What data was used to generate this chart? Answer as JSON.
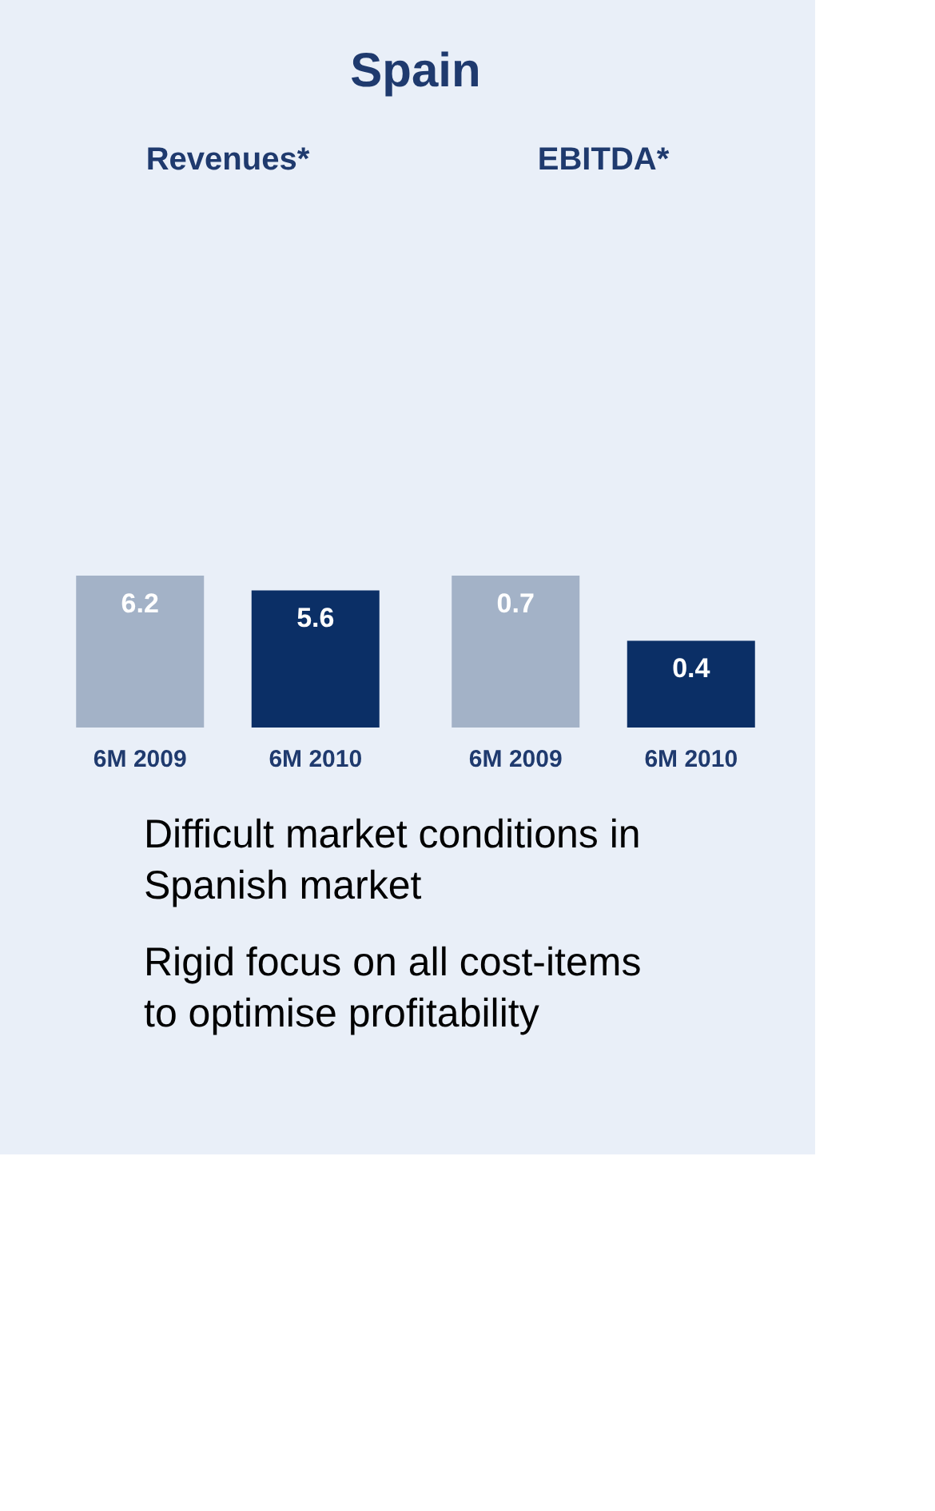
{
  "chart_data": [
    {
      "type": "bar",
      "title": "Revenues*",
      "categories": [
        "6M 2009",
        "6M 2010"
      ],
      "values": [
        6.2,
        5.6
      ],
      "colors": [
        "#a3b2c7",
        "#0b2f66"
      ],
      "data_labels": true,
      "annotations": [
        "Spain"
      ]
    },
    {
      "type": "bar",
      "title": "EBITDA*",
      "categories": [
        "6M 2009",
        "6M 2010"
      ],
      "values": [
        0.7,
        0.4
      ],
      "colors": [
        "#a3b2c7",
        "#0b2f66"
      ],
      "data_labels": true,
      "annotations": [
        "Difficult market conditions in Spanish market",
        "Rigid focus on all cost-items to optimise profitability"
      ]
    }
  ]
}
